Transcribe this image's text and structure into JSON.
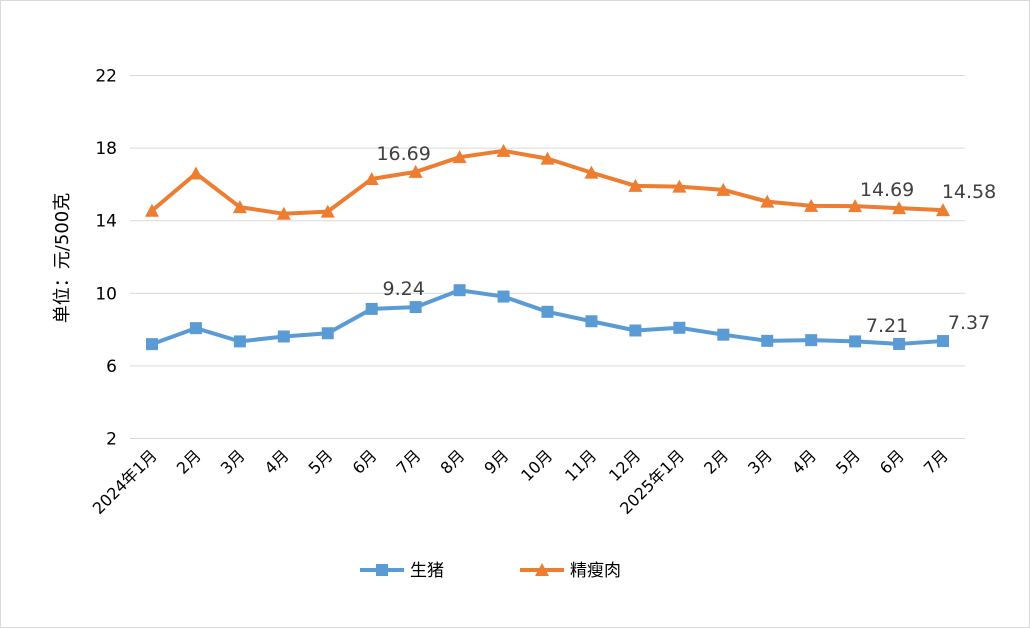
{
  "chart_data": {
    "type": "line",
    "ylabel": "单位：元/500克",
    "ylim": [
      2,
      22
    ],
    "yticks": [
      2,
      6,
      10,
      14,
      18,
      22
    ],
    "grid": true,
    "legend_position": "bottom",
    "categories": [
      "2024年1月",
      "2月",
      "3月",
      "4月",
      "5月",
      "6月",
      "7月",
      "8月",
      "9月",
      "10月",
      "11月",
      "12月",
      "2025年1月",
      "2月",
      "3月",
      "4月",
      "5月",
      "6月",
      "7月"
    ],
    "series": [
      {
        "name": "生猪",
        "color": "#5b9bd5",
        "marker": "square",
        "values": [
          7.2,
          8.08,
          7.35,
          7.62,
          7.8,
          9.14,
          9.24,
          10.17,
          9.82,
          8.98,
          8.46,
          7.95,
          8.1,
          7.72,
          7.38,
          7.42,
          7.35,
          7.21,
          7.37
        ],
        "data_labels": [
          {
            "index": 6,
            "text": "9.24"
          },
          {
            "index": 17,
            "text": "7.21"
          },
          {
            "index": 18,
            "text": "7.37"
          }
        ]
      },
      {
        "name": "精瘦肉",
        "color": "#ed7d31",
        "marker": "triangle",
        "values": [
          14.55,
          16.6,
          14.75,
          14.38,
          14.5,
          16.3,
          16.69,
          17.5,
          17.85,
          17.42,
          16.65,
          15.92,
          15.88,
          15.7,
          15.05,
          14.82,
          14.8,
          14.69,
          14.58
        ],
        "data_labels": [
          {
            "index": 6,
            "text": "16.69"
          },
          {
            "index": 17,
            "text": "14.69"
          },
          {
            "index": 18,
            "text": "14.58"
          }
        ]
      }
    ]
  }
}
